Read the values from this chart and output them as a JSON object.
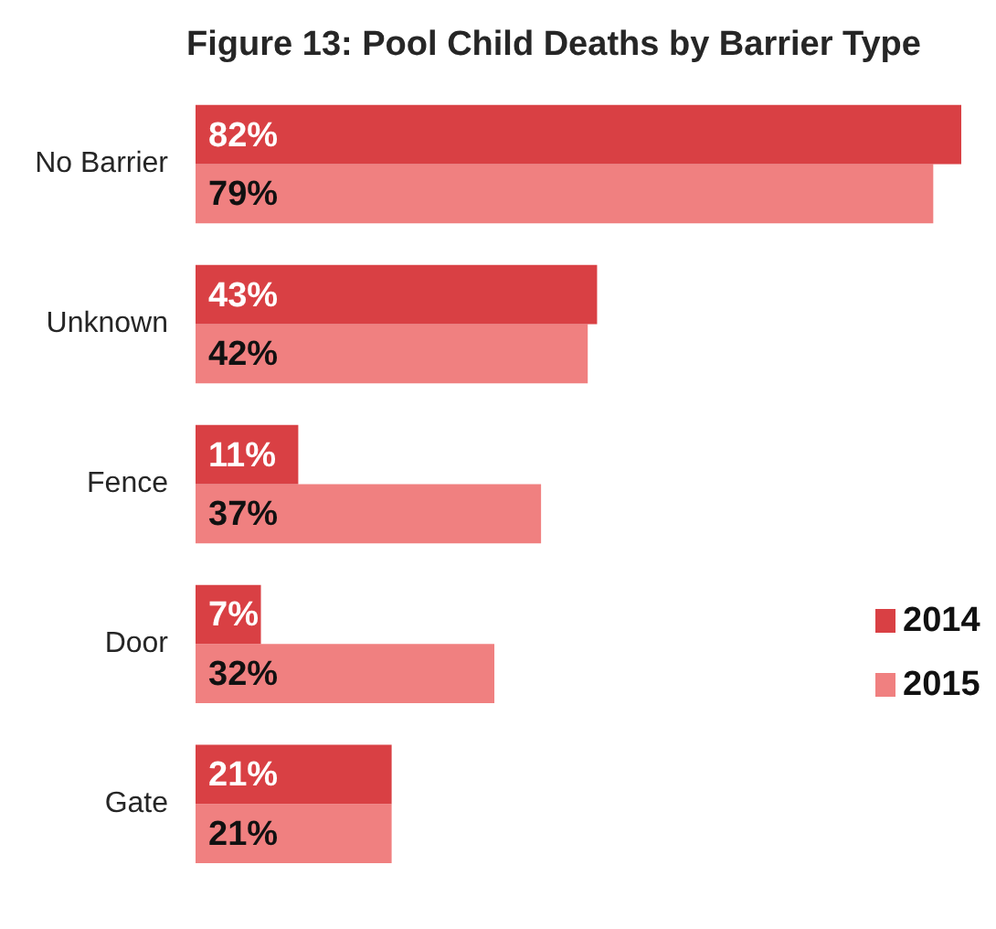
{
  "chart_data": {
    "type": "bar",
    "title": "Figure 13: Pool Child Deaths by Barrier Type",
    "orientation": "horizontal",
    "categories": [
      "No Barrier",
      "Unknown",
      "Fence",
      "Door",
      "Gate"
    ],
    "series": [
      {
        "name": "2014",
        "color": "#d94044",
        "values": [
          82,
          43,
          11,
          7,
          21
        ],
        "value_labels": [
          "82%",
          "43%",
          "11%",
          "7%",
          "21%"
        ]
      },
      {
        "name": "2015",
        "color": "#f08080",
        "values": [
          79,
          42,
          37,
          32,
          21
        ],
        "value_labels": [
          "79%",
          "42%",
          "37%",
          "32%",
          "21%"
        ]
      }
    ],
    "legend": "right"
  }
}
